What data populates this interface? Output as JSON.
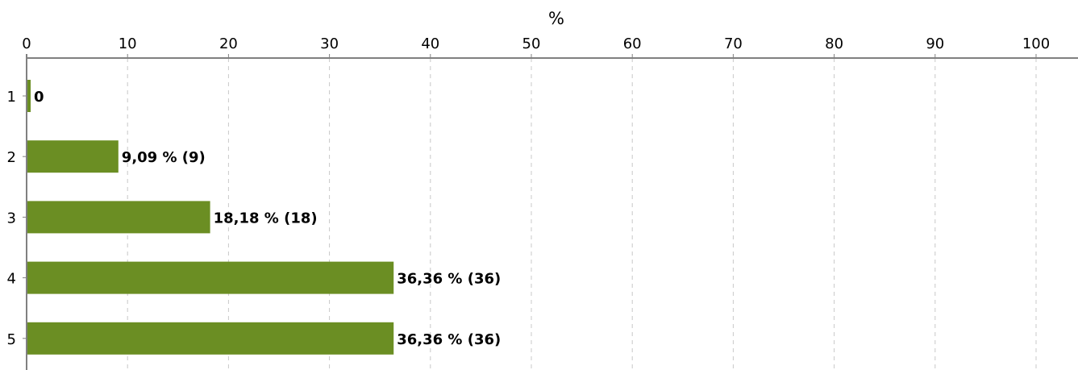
{
  "chart_data": {
    "type": "bar",
    "orientation": "horizontal",
    "title": "",
    "xlabel": "%",
    "ylabel": "",
    "xlim": [
      0,
      100
    ],
    "x_ticks": [
      "0",
      "10",
      "20",
      "30",
      "40",
      "50",
      "60",
      "70",
      "80",
      "90",
      "100"
    ],
    "x_axis_position": "top",
    "grid": "vertical dashed",
    "categories": [
      "1",
      "2",
      "3",
      "4",
      "5"
    ],
    "values": [
      0,
      9.09,
      18.18,
      36.36,
      36.36
    ],
    "counts": [
      0,
      9,
      18,
      36,
      36
    ],
    "data_labels": [
      "0",
      "9,09 % (9)",
      "18,18 % (18)",
      "36,36 % (36)",
      "36,36 % (36)"
    ],
    "colors": {
      "bar": "#6b8e23",
      "axis": "#808080",
      "grid": "#c8c8c8"
    }
  }
}
